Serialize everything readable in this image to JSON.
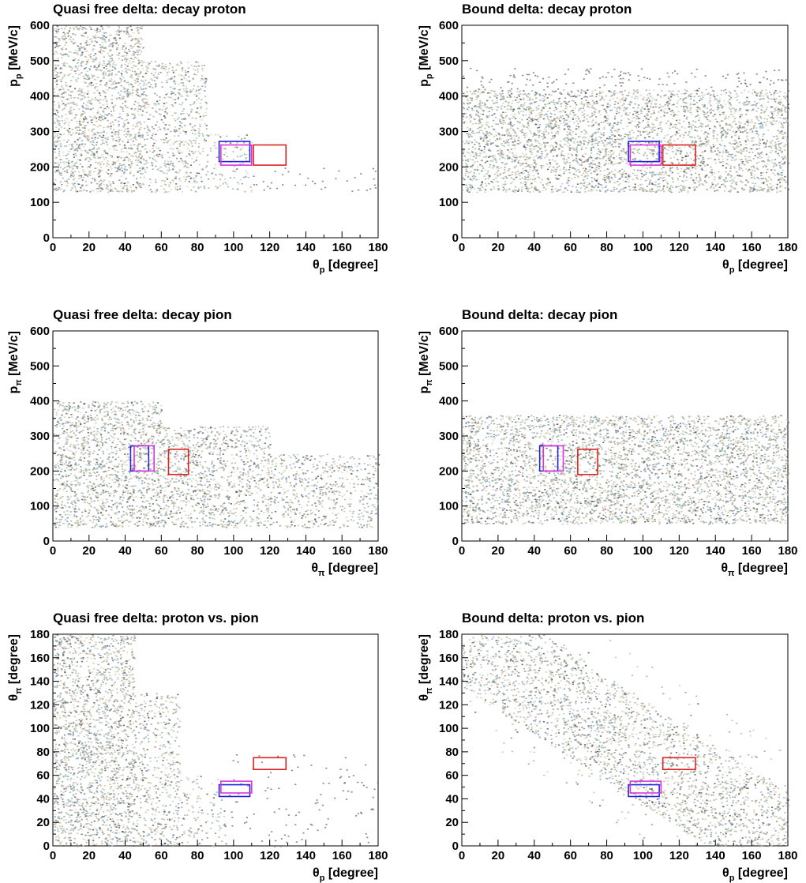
{
  "chart_data": [
    {
      "type": "scatter",
      "title": "Quasi free delta: decay proton",
      "xlabel": {
        "main": "θ",
        "sub": "p",
        "rest": " [degree]"
      },
      "ylabel": {
        "main": "p",
        "sub": "p",
        "rest": " [MeV/c]"
      },
      "xlim": [
        0,
        180
      ],
      "ylim": [
        0,
        600
      ],
      "xticks": [
        0,
        20,
        40,
        60,
        80,
        100,
        120,
        140,
        160,
        180
      ],
      "yticks": [
        0,
        100,
        200,
        300,
        400,
        500,
        600
      ],
      "grid": false,
      "density": [
        {
          "x": [
            0,
            50
          ],
          "y": [
            130,
            600
          ],
          "weight": 3
        },
        {
          "x": [
            50,
            85
          ],
          "y": [
            130,
            500
          ],
          "weight": 2
        },
        {
          "x": [
            85,
            110
          ],
          "y": [
            130,
            300
          ],
          "weight": 1
        },
        {
          "x": [
            110,
            180
          ],
          "y": [
            125,
            200
          ],
          "weight": 0.3
        }
      ],
      "boxes": [
        {
          "color": "#2222dd",
          "x": [
            92,
            109
          ],
          "y": [
            215,
            272
          ]
        },
        {
          "color": "#dd33dd",
          "x": [
            93,
            110
          ],
          "y": [
            205,
            262
          ]
        },
        {
          "color": "#dd2222",
          "x": [
            111,
            129
          ],
          "y": [
            205,
            262
          ]
        }
      ]
    },
    {
      "type": "scatter",
      "title": "Bound delta: decay proton",
      "xlabel": {
        "main": "θ",
        "sub": "p",
        "rest": " [degree]"
      },
      "ylabel": {
        "main": "p",
        "sub": "p",
        "rest": " [MeV/c]"
      },
      "xlim": [
        0,
        180
      ],
      "ylim": [
        0,
        600
      ],
      "xticks": [
        0,
        20,
        40,
        60,
        80,
        100,
        120,
        140,
        160,
        180
      ],
      "yticks": [
        0,
        100,
        200,
        300,
        400,
        500,
        600
      ],
      "grid": false,
      "density": [
        {
          "x": [
            0,
            180
          ],
          "y": [
            130,
            420
          ],
          "weight": 3
        },
        {
          "x": [
            0,
            180
          ],
          "y": [
            420,
            480
          ],
          "weight": 0.5
        }
      ],
      "boxes": [
        {
          "color": "#2222dd",
          "x": [
            92,
            109
          ],
          "y": [
            215,
            272
          ]
        },
        {
          "color": "#dd33dd",
          "x": [
            93,
            110
          ],
          "y": [
            205,
            262
          ]
        },
        {
          "color": "#dd2222",
          "x": [
            111,
            129
          ],
          "y": [
            205,
            262
          ]
        }
      ]
    },
    {
      "type": "scatter",
      "title": "Quasi free delta: decay pion",
      "xlabel": {
        "main": "θ",
        "sub": "π",
        "rest": " [degree]"
      },
      "ylabel": {
        "main": "p",
        "sub": "π",
        "rest": " [MeV/c]"
      },
      "xlim": [
        0,
        180
      ],
      "ylim": [
        0,
        600
      ],
      "xticks": [
        0,
        20,
        40,
        60,
        80,
        100,
        120,
        140,
        160,
        180
      ],
      "yticks": [
        0,
        100,
        200,
        300,
        400,
        500,
        600
      ],
      "grid": false,
      "density": [
        {
          "x": [
            0,
            60
          ],
          "y": [
            40,
            400
          ],
          "weight": 3
        },
        {
          "x": [
            60,
            120
          ],
          "y": [
            40,
            330
          ],
          "weight": 2.5
        },
        {
          "x": [
            120,
            180
          ],
          "y": [
            40,
            250
          ],
          "weight": 2
        }
      ],
      "boxes": [
        {
          "color": "#2222dd",
          "x": [
            43,
            53
          ],
          "y": [
            200,
            272
          ]
        },
        {
          "color": "#dd33dd",
          "x": [
            45,
            56
          ],
          "y": [
            200,
            272
          ]
        },
        {
          "color": "#dd2222",
          "x": [
            64,
            75
          ],
          "y": [
            190,
            262
          ]
        }
      ]
    },
    {
      "type": "scatter",
      "title": "Bound delta: decay pion",
      "xlabel": {
        "main": "θ",
        "sub": "π",
        "rest": " [degree]"
      },
      "ylabel": {
        "main": "p",
        "sub": "π",
        "rest": " [MeV/c]"
      },
      "xlim": [
        0,
        180
      ],
      "ylim": [
        0,
        600
      ],
      "xticks": [
        0,
        20,
        40,
        60,
        80,
        100,
        120,
        140,
        160,
        180
      ],
      "yticks": [
        0,
        100,
        200,
        300,
        400,
        500,
        600
      ],
      "grid": false,
      "density": [
        {
          "x": [
            0,
            180
          ],
          "y": [
            50,
            360
          ],
          "weight": 3
        }
      ],
      "boxes": [
        {
          "color": "#2222dd",
          "x": [
            43,
            53
          ],
          "y": [
            200,
            272
          ]
        },
        {
          "color": "#dd33dd",
          "x": [
            45,
            56
          ],
          "y": [
            200,
            272
          ]
        },
        {
          "color": "#dd2222",
          "x": [
            64,
            75
          ],
          "y": [
            190,
            262
          ]
        }
      ]
    },
    {
      "type": "scatter",
      "title": "Quasi free delta: proton vs. pion",
      "xlabel": {
        "main": "θ",
        "sub": "p",
        "rest": " [degree]"
      },
      "ylabel": {
        "main": "θ",
        "sub": "π",
        "rest": " [degree]"
      },
      "xlim": [
        0,
        180
      ],
      "ylim": [
        0,
        180
      ],
      "xticks": [
        0,
        20,
        40,
        60,
        80,
        100,
        120,
        140,
        160,
        180
      ],
      "yticks": [
        0,
        20,
        40,
        60,
        80,
        100,
        120,
        140,
        160,
        180
      ],
      "grid": false,
      "density": [
        {
          "x": [
            0,
            45
          ],
          "y": [
            0,
            180
          ],
          "weight": 3
        },
        {
          "x": [
            45,
            70
          ],
          "y": [
            0,
            130
          ],
          "weight": 2
        },
        {
          "x": [
            70,
            95
          ],
          "y": [
            0,
            60
          ],
          "weight": 1
        },
        {
          "x": [
            95,
            180
          ],
          "y": [
            0,
            80
          ],
          "weight": 0.2
        }
      ],
      "boxes": [
        {
          "color": "#2222dd",
          "x": [
            92,
            109
          ],
          "y": [
            42,
            52
          ]
        },
        {
          "color": "#dd33dd",
          "x": [
            93,
            110
          ],
          "y": [
            45,
            55
          ]
        },
        {
          "color": "#dd2222",
          "x": [
            111,
            129
          ],
          "y": [
            65,
            75
          ]
        }
      ]
    },
    {
      "type": "scatter",
      "title": "Bound delta: proton vs. pion",
      "xlabel": {
        "main": "θ",
        "sub": "p",
        "rest": " [degree]"
      },
      "ylabel": {
        "main": "θ",
        "sub": "π",
        "rest": " [degree]"
      },
      "xlim": [
        0,
        180
      ],
      "ylim": [
        0,
        180
      ],
      "xticks": [
        0,
        20,
        40,
        60,
        80,
        100,
        120,
        140,
        160,
        180
      ],
      "yticks": [
        0,
        20,
        40,
        60,
        80,
        100,
        120,
        140,
        160,
        180
      ],
      "grid": false,
      "density": [
        {
          "band": [
            180,
            -1
          ],
          "halfwidth": 45,
          "x": [
            0,
            180
          ],
          "weight": 3
        },
        {
          "band": [
            180,
            -1
          ],
          "halfwidth": 80,
          "x": [
            0,
            180
          ],
          "weight": 0.4
        }
      ],
      "boxes": [
        {
          "color": "#2222dd",
          "x": [
            92,
            109
          ],
          "y": [
            42,
            52
          ]
        },
        {
          "color": "#dd33dd",
          "x": [
            93,
            110
          ],
          "y": [
            45,
            55
          ]
        },
        {
          "color": "#dd2222",
          "x": [
            111,
            129
          ],
          "y": [
            65,
            75
          ]
        }
      ]
    }
  ]
}
